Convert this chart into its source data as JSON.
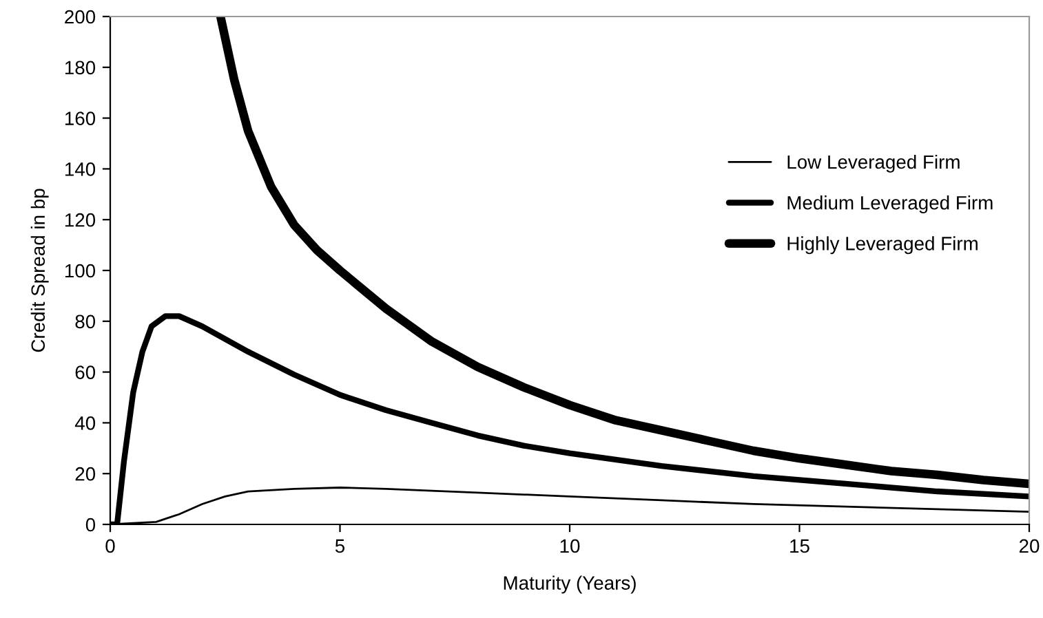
{
  "chart_data": {
    "type": "line",
    "xlabel": "Maturity (Years)",
    "ylabel": "Credit Spread in bp",
    "xlim": [
      0,
      20
    ],
    "ylim": [
      0,
      200
    ],
    "xticks": [
      0,
      5,
      10,
      15,
      20
    ],
    "yticks": [
      0,
      20,
      40,
      60,
      80,
      100,
      120,
      140,
      160,
      180,
      200
    ],
    "grid": false,
    "legend": "right",
    "marker": "none",
    "line_style": "solid",
    "series": [
      {
        "name": "Low Leveraged Firm",
        "color": "#000000",
        "x": [
          0,
          1,
          1.5,
          2,
          2.5,
          3,
          4,
          5,
          6,
          8,
          10,
          12,
          14,
          16,
          18,
          20
        ],
        "values": [
          0,
          1,
          4,
          8,
          11,
          13,
          14,
          14.5,
          14,
          12.5,
          11,
          9.5,
          8,
          7,
          6,
          5
        ]
      },
      {
        "name": "Medium Leveraged Firm",
        "color": "#000000",
        "x": [
          0,
          0.15,
          0.3,
          0.5,
          0.7,
          0.9,
          1.2,
          1.5,
          2,
          2.5,
          3,
          4,
          5,
          6,
          7,
          8,
          9,
          10,
          12,
          14,
          16,
          18,
          20
        ],
        "values": [
          0,
          0,
          25,
          52,
          68,
          78,
          82,
          82,
          78,
          73,
          68,
          59,
          51,
          45,
          40,
          35,
          31,
          28,
          23,
          19,
          16,
          13,
          11
        ]
      },
      {
        "name": "Highly Leveraged Firm",
        "color": "#000000",
        "x": [
          2.4,
          2.7,
          3,
          3.5,
          4,
          4.5,
          5,
          6,
          7,
          8,
          9,
          10,
          11,
          12,
          13,
          14,
          15,
          16,
          17,
          18,
          19,
          20
        ],
        "values": [
          200,
          175,
          155,
          133,
          118,
          108,
          100,
          85,
          72,
          62,
          54,
          47,
          41,
          37,
          33,
          29,
          26,
          23.5,
          21,
          19.5,
          17.5,
          16
        ]
      }
    ]
  }
}
